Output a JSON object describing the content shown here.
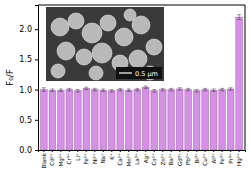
{
  "chart_data": {
    "type": "bar",
    "y_label": "F₀/F",
    "categories": [
      "Blank",
      "Cd²⁺",
      "Mg²⁺",
      "Cr³⁺",
      "Li⁺",
      "Fe²⁺",
      "Ni²⁺",
      "Na⁺",
      "K⁺",
      "Ca²⁺",
      "Mn²⁺",
      "La³⁺",
      "Ag⁺",
      "Co²⁺",
      "Zn²⁺",
      "Ba²⁺",
      "Gd³⁺",
      "Pb²⁺",
      "Bi³⁺",
      "Cu²⁺",
      "Al³⁺",
      "Fe³⁺",
      "Pr³⁺",
      "Hg²⁺"
    ],
    "values": [
      1.0,
      0.99,
      0.99,
      1.0,
      0.98,
      1.02,
      1.0,
      0.99,
      0.98,
      1.0,
      0.99,
      1.0,
      1.04,
      0.98,
      1.0,
      1.0,
      1.01,
      1.0,
      0.98,
      1.0,
      0.99,
      1.0,
      1.01,
      2.2
    ],
    "errors": [
      0.03,
      0.02,
      0.02,
      0.02,
      0.02,
      0.02,
      0.02,
      0.02,
      0.02,
      0.02,
      0.02,
      0.02,
      0.02,
      0.02,
      0.02,
      0.02,
      0.02,
      0.02,
      0.02,
      0.02,
      0.02,
      0.02,
      0.02,
      0.04
    ],
    "color": "#d690e6",
    "ylim": [
      0,
      2.4
    ],
    "yticks": [
      {
        "value": 0,
        "label": "0.0"
      },
      {
        "value": 0.5,
        "label": "0.5"
      },
      {
        "value": 1,
        "label": "1.0"
      },
      {
        "value": 1.5,
        "label": "1.5"
      },
      {
        "value": 2,
        "label": "2.0"
      }
    ],
    "annotations": [
      "0.5 μm"
    ]
  }
}
